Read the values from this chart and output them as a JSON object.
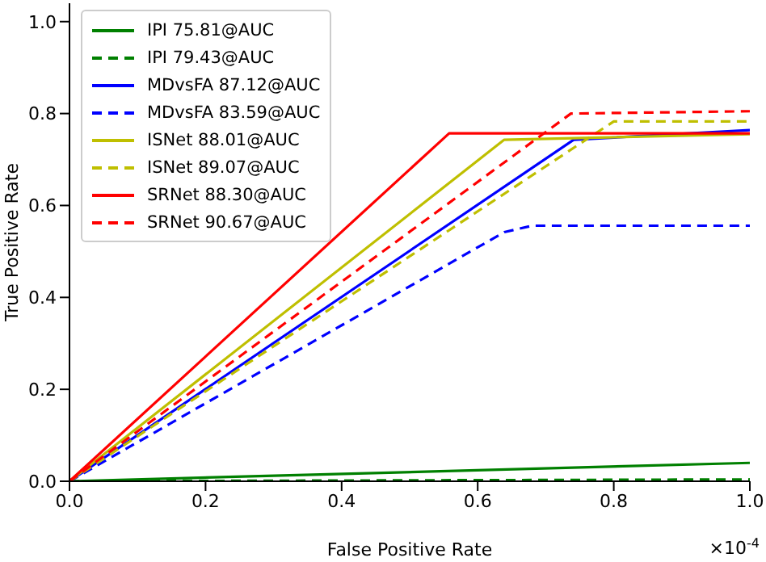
{
  "chart_data": {
    "type": "line",
    "xlabel": "False Positive Rate",
    "ylabel": "True Positive Rate",
    "xlim": [
      0,
      1
    ],
    "xticks": [
      {
        "value": 0,
        "label": "0.0"
      },
      {
        "value": 0.2,
        "label": "0.2"
      },
      {
        "value": 0.4,
        "label": "0.4"
      },
      {
        "value": 0.6,
        "label": "0.6"
      },
      {
        "value": 0.8,
        "label": "0.8"
      },
      {
        "value": 1,
        "label": "1.0"
      }
    ],
    "ylim": [
      0,
      1.04
    ],
    "yticks": [
      {
        "value": 0,
        "label": "0.0"
      },
      {
        "value": 0.2,
        "label": "0.2"
      },
      {
        "value": 0.4,
        "label": "0.4"
      },
      {
        "value": 0.6,
        "label": "0.6"
      },
      {
        "value": 0.8,
        "label": "0.8"
      },
      {
        "value": 1,
        "label": "1.0"
      }
    ],
    "legend": "top left",
    "marker": "none",
    "grid": false,
    "annotations": [
      "×10$^{-4}$"
    ],
    "series": [
      {
        "name": "IPI 75.81@AUC",
        "color": "#008000",
        "line_style": "solid",
        "x": [
          0,
          1
        ],
        "values": [
          0,
          0.04
        ]
      },
      {
        "name": "IPI 79.43@AUC",
        "color": "#008000",
        "line_style": "dashed",
        "x": [
          0,
          1
        ],
        "values": [
          0,
          0.004
        ]
      },
      {
        "name": "MDvsFA 87.12@AUC",
        "color": "#0000ff",
        "line_style": "solid",
        "x": [
          0,
          0.741,
          1
        ],
        "values": [
          0,
          0.743,
          0.764
        ]
      },
      {
        "name": "MDvsFA 83.59@AUC",
        "color": "#0000ff",
        "line_style": "dashed",
        "x": [
          0,
          0.639,
          0.68,
          1
        ],
        "values": [
          0,
          0.542,
          0.556,
          0.556
        ]
      },
      {
        "name": "ISNet 88.01@AUC",
        "color": "#bfbf00",
        "line_style": "solid",
        "x": [
          0,
          0.639,
          1
        ],
        "values": [
          0,
          0.743,
          0.755
        ]
      },
      {
        "name": "ISNet 89.07@AUC",
        "color": "#bfbf00",
        "line_style": "dashed",
        "x": [
          0,
          0.8,
          1
        ],
        "values": [
          0,
          0.783,
          0.783
        ]
      },
      {
        "name": "SRNet 88.30@AUC",
        "color": "#ff0000",
        "line_style": "solid",
        "x": [
          0,
          0.558,
          1
        ],
        "values": [
          0,
          0.757,
          0.757
        ]
      },
      {
        "name": "SRNet 90.67@AUC",
        "color": "#ff0000",
        "line_style": "dashed",
        "x": [
          0,
          0.737,
          1
        ],
        "values": [
          0,
          0.8,
          0.805
        ]
      }
    ]
  }
}
